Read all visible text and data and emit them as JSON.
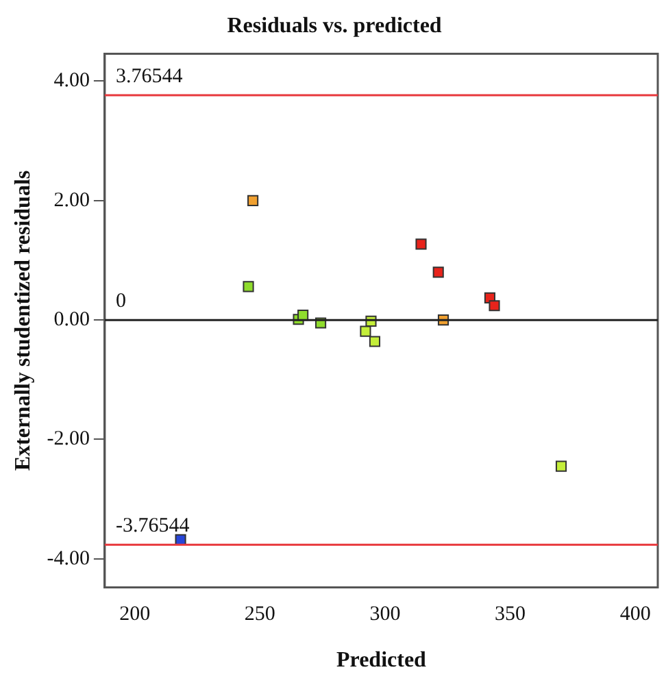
{
  "chart_data": {
    "type": "scatter",
    "title": "Residuals vs. predicted",
    "xlabel": "Predicted",
    "ylabel": "Externally studentized residuals",
    "x": [
      218.3,
      245.4,
      247.2,
      265.4,
      267.2,
      274.3,
      292.2,
      294.4,
      295.9,
      314.4,
      321.3,
      323.3,
      341.9,
      343.7,
      370.4
    ],
    "values": [
      -3.68,
      0.56,
      2.0,
      0.01,
      0.08,
      -0.05,
      -0.19,
      -0.02,
      -0.36,
      1.27,
      0.8,
      0.0,
      0.37,
      0.24,
      -2.45
    ],
    "colors": [
      "#2846d8",
      "#8fdc2c",
      "#f0a030",
      "#8fdc2c",
      "#8fdc2c",
      "#8fdc2c",
      "#c4ee3a",
      "#c4ee3a",
      "#c4ee3a",
      "#e8231b",
      "#e8231b",
      "#f0a030",
      "#e8231b",
      "#e8231b",
      "#c4ee3a"
    ],
    "marker": "square",
    "xlim": [
      188,
      409
    ],
    "ylim": [
      -4.48,
      4.46
    ],
    "xticks": [
      200,
      250,
      300,
      350,
      400
    ],
    "yticks": [
      {
        "value": -4,
        "label": "-4.00"
      },
      {
        "value": -2,
        "label": "-2.00"
      },
      {
        "value": 0,
        "label": "0.00"
      },
      {
        "value": 2,
        "label": "2.00"
      },
      {
        "value": 4,
        "label": "4.00"
      }
    ],
    "ref_lines": [
      {
        "axis": "y",
        "value": 3.76544,
        "label": "3.76544",
        "color": "#e8383c"
      },
      {
        "axis": "y",
        "value": 0,
        "label": "0",
        "color": "#222222"
      },
      {
        "axis": "y",
        "value": -3.76544,
        "label": "-3.76544",
        "color": "#e8383c"
      }
    ],
    "grid": false,
    "legend": false
  }
}
